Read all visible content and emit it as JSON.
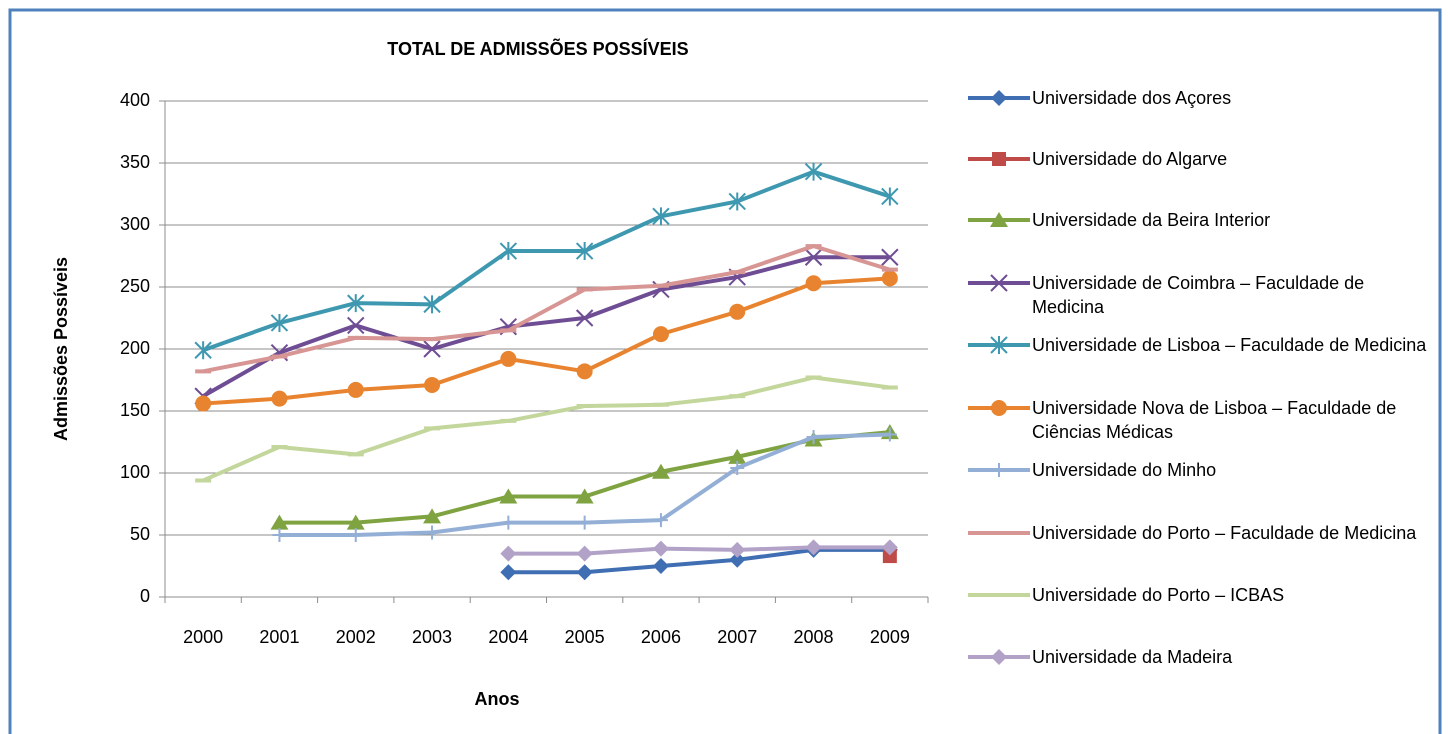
{
  "chart_data": {
    "type": "line",
    "title": "TOTAL DE ADMISSÕES POSSÍVEIS",
    "x_label": "Anos",
    "y_label": "Admissões Possíveis",
    "categories": [
      "2000",
      "2001",
      "2002",
      "2003",
      "2004",
      "2005",
      "2006",
      "2007",
      "2008",
      "2009"
    ],
    "ylim": [
      0,
      400
    ],
    "yticks": [
      0,
      50,
      100,
      150,
      200,
      250,
      300,
      350,
      400
    ],
    "grid": true,
    "legend": "right",
    "series": [
      {
        "name": "Universidade dos Açores",
        "color": "#3f6eb3",
        "marker": "diamond",
        "values": [
          null,
          null,
          null,
          null,
          20,
          20,
          25,
          30,
          38,
          38
        ]
      },
      {
        "name": "Universidade do Algarve",
        "color": "#be4b48",
        "marker": "square",
        "values": [
          null,
          null,
          null,
          null,
          null,
          null,
          null,
          null,
          null,
          33
        ]
      },
      {
        "name": "Universidade da Beira Interior",
        "color": "#7ea340",
        "marker": "triangle",
        "values": [
          null,
          60,
          60,
          65,
          81,
          81,
          101,
          113,
          127,
          133
        ]
      },
      {
        "name": "Universidade de Coimbra – Faculdade de Medicina",
        "color": "#6e4d94",
        "marker": "x",
        "values": [
          162,
          197,
          219,
          200,
          218,
          225,
          248,
          258,
          274,
          274
        ]
      },
      {
        "name": "Universidade de Lisboa – Faculdade de Medicina",
        "color": "#3e98b0",
        "marker": "star",
        "values": [
          199,
          221,
          237,
          236,
          279,
          279,
          307,
          319,
          343,
          323
        ]
      },
      {
        "name": "Universidade Nova de Lisboa – Faculdade de Ciências Médicas",
        "color": "#e8842f",
        "marker": "circle",
        "values": [
          156,
          160,
          167,
          171,
          192,
          182,
          212,
          230,
          253,
          257
        ]
      },
      {
        "name": "Universidade do Minho",
        "color": "#93afd6",
        "marker": "plus",
        "values": [
          null,
          50,
          50,
          52,
          60,
          60,
          62,
          104,
          129,
          131
        ]
      },
      {
        "name": "Universidade do Porto – Faculdade de Medicina",
        "color": "#d79593",
        "marker": "dash",
        "values": [
          182,
          194,
          209,
          208,
          215,
          248,
          251,
          262,
          283,
          264
        ]
      },
      {
        "name": "Universidade do Porto – ICBAS",
        "color": "#c3d69b",
        "marker": "dash",
        "values": [
          94,
          121,
          115,
          136,
          142,
          154,
          155,
          162,
          177,
          169
        ]
      },
      {
        "name": "Universidade da Madeira",
        "color": "#b3a2c7",
        "marker": "diamond",
        "values": [
          null,
          null,
          null,
          null,
          35,
          35,
          39,
          38,
          40,
          40
        ]
      }
    ]
  }
}
